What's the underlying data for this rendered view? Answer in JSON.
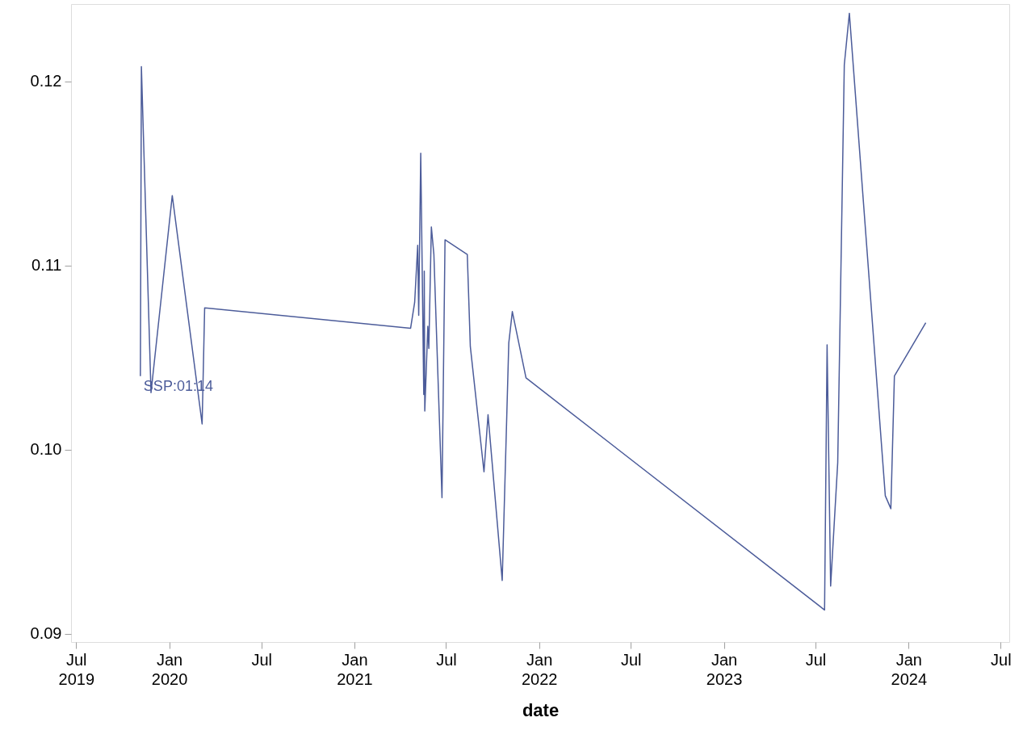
{
  "chart_data": {
    "type": "line",
    "xlabel": "date",
    "x": [
      "2019-11-05",
      "2019-11-07",
      "2019-11-26",
      "2020-01-07",
      "2020-03-06",
      "2020-03-11",
      "2021-04-22",
      "2021-04-30",
      "2021-05-06",
      "2021-05-08",
      "2021-05-12",
      "2021-05-18",
      "2021-05-19",
      "2021-05-20",
      "2021-05-26",
      "2021-05-28",
      "2021-06-02",
      "2021-06-07",
      "2021-06-23",
      "2021-06-29",
      "2021-08-12",
      "2021-08-18",
      "2021-09-14",
      "2021-09-22",
      "2021-10-20",
      "2021-11-02",
      "2021-11-09",
      "2021-12-06",
      "2023-07-19",
      "2023-07-24",
      "2023-07-31",
      "2023-08-14",
      "2023-08-27",
      "2023-09-06",
      "2023-11-16",
      "2023-11-27",
      "2023-12-04",
      "2024-02-04"
    ],
    "series": [
      {
        "color": "#4c5c9a",
        "values": [
          0.104,
          0.1208,
          0.1031,
          0.1138,
          0.1014,
          0.1077,
          0.1066,
          0.108,
          0.1111,
          0.1073,
          0.1161,
          0.103,
          0.1097,
          0.1021,
          0.1067,
          0.1055,
          0.1121,
          0.1106,
          0.0974,
          0.1114,
          0.1106,
          0.1056,
          0.0988,
          0.1019,
          0.0929,
          0.1058,
          0.1075,
          0.1039,
          0.0913,
          0.1057,
          0.0926,
          0.0993,
          0.1209,
          0.1237,
          0.0975,
          0.0968,
          0.104,
          0.1069
        ]
      }
    ],
    "annotations": [
      {
        "text": "SSP:01:14",
        "x": "2019-11-05",
        "y": 0.104
      }
    ],
    "xlim": [
      "2019-06-21",
      "2024-07-18"
    ],
    "xticks": [
      {
        "value": "2019-07-01",
        "label": "Jul\n2019"
      },
      {
        "value": "2020-01-01",
        "label": "Jan\n2020"
      },
      {
        "value": "2020-07-01",
        "label": "Jul"
      },
      {
        "value": "2021-01-01",
        "label": "Jan\n2021"
      },
      {
        "value": "2021-07-01",
        "label": "Jul"
      },
      {
        "value": "2022-01-01",
        "label": "Jan\n2022"
      },
      {
        "value": "2022-07-01",
        "label": "Jul"
      },
      {
        "value": "2023-01-01",
        "label": "Jan\n2023"
      },
      {
        "value": "2023-07-01",
        "label": "Jul"
      },
      {
        "value": "2024-01-01",
        "label": "Jan\n2024"
      },
      {
        "value": "2024-07-01",
        "label": "Jul"
      }
    ],
    "ylim": [
      0.08956,
      0.1242
    ],
    "yticks": [
      {
        "value": 0.09,
        "label": "0.09"
      },
      {
        "value": 0.1,
        "label": "0.10"
      },
      {
        "value": 0.11,
        "label": "0.11"
      },
      {
        "value": 0.12,
        "label": "0.12"
      }
    ],
    "grid": false,
    "marker": "none",
    "line_style": "solid"
  }
}
